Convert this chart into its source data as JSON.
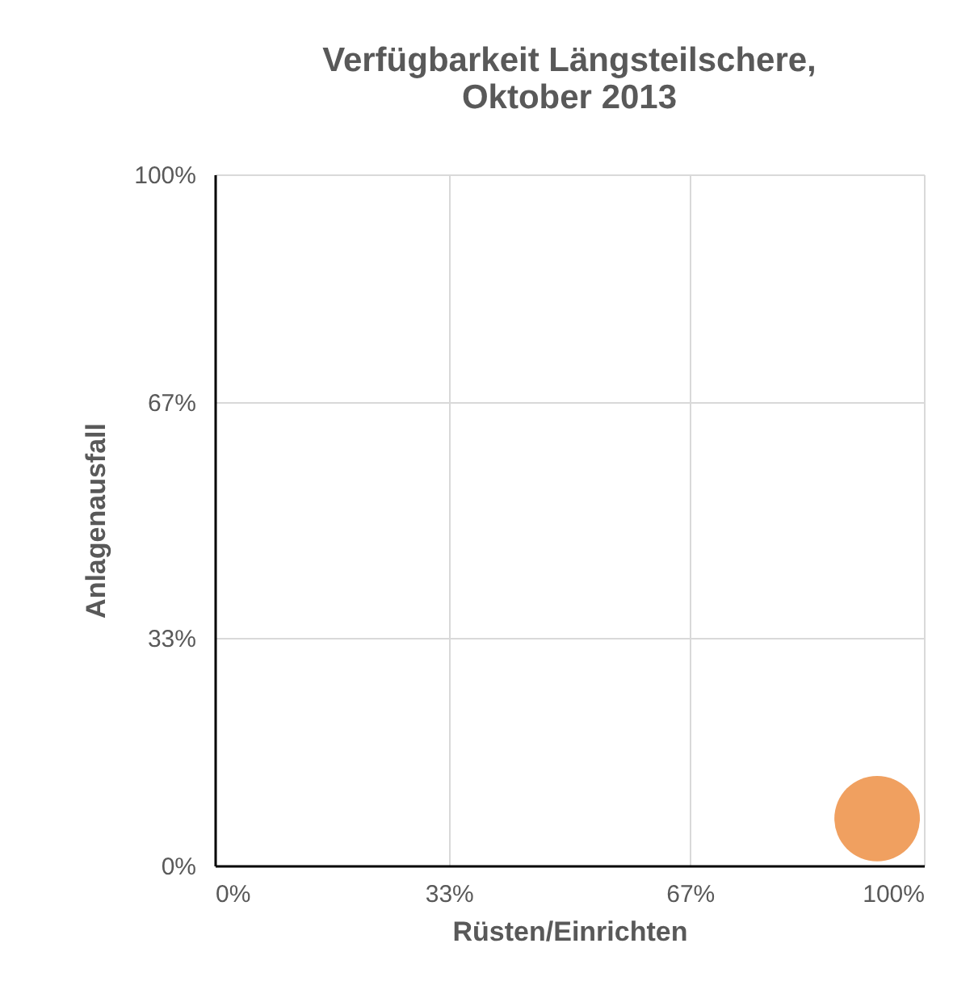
{
  "chart_data": {
    "type": "bubble",
    "title": "Verfügbarkeit Längsteilschere, Oktober 2013",
    "xlabel": "Rüsten/Einrichten",
    "ylabel": "Anlagenausfall",
    "x": [
      93.4
    ],
    "series": [
      {
        "color": "#f0a060",
        "values": [
          6.8
        ],
        "sizes": [
          1
        ]
      }
    ],
    "xlim": [
      0,
      100
    ],
    "ylim": [
      0,
      100
    ],
    "xticks": [
      {
        "value": 0,
        "label": "0%"
      },
      {
        "value": 33,
        "label": "33%"
      },
      {
        "value": 67,
        "label": "67%"
      },
      {
        "value": 100,
        "label": "100%"
      }
    ],
    "yticks": [
      {
        "value": 0,
        "label": "0%"
      },
      {
        "value": 33,
        "label": "33%"
      },
      {
        "value": 67,
        "label": "67%"
      },
      {
        "value": 100,
        "label": "100%"
      }
    ],
    "grid": true,
    "legend": false
  }
}
